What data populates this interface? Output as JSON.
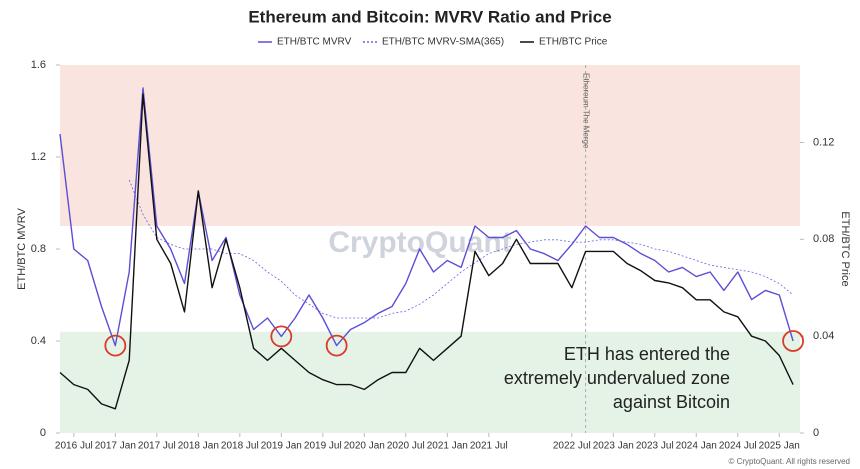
{
  "chart_data": {
    "type": "line",
    "title": "Ethereum and Bitcoin: MVRV Ratio and Price",
    "y_label": "ETH/BTC MVRV",
    "y2_label": "ETH/BTC Price",
    "watermark": "CryptoQuant",
    "copyright": "© CryptoQuant. All rights reserved",
    "annotation": [
      "ETH has entered the",
      "extremely undervalued zone",
      "against Bitcoin"
    ],
    "event": {
      "x": "2022-09",
      "label": "Ethereum The Merge"
    },
    "zones": [
      {
        "from": 0.9,
        "to": 1.6,
        "color": "#f9e4df"
      },
      {
        "from": 0,
        "to": 0.44,
        "color": "#e5f3e6"
      }
    ],
    "highlight_x": [
      "2017-01",
      "2019-01",
      "2019-09",
      "2025-03"
    ],
    "highlight_color": "#d93a2b",
    "xlim": [
      "2016-05",
      "2025-04"
    ],
    "xticks": [
      {
        "value": "2016-07",
        "label": "2016 Jul"
      },
      {
        "value": "2017-01",
        "label": "2017 Jan"
      },
      {
        "value": "2017-07",
        "label": "2017 Jul"
      },
      {
        "value": "2018-01",
        "label": "2018 Jan"
      },
      {
        "value": "2018-07",
        "label": "2018 Jul"
      },
      {
        "value": "2019-01",
        "label": "2019 Jan"
      },
      {
        "value": "2019-07",
        "label": "2019 Jul"
      },
      {
        "value": "2020-01",
        "label": "2020 Jan"
      },
      {
        "value": "2020-07",
        "label": "2020 Jul"
      },
      {
        "value": "2021-01",
        "label": "2021 Jan"
      },
      {
        "value": "2021-07",
        "label": "2021 Jul"
      },
      {
        "value": "2022-07",
        "label": "2022 Jul"
      },
      {
        "value": "2023-01",
        "label": "2023 Jan"
      },
      {
        "value": "2023-07",
        "label": "2023 Jul"
      },
      {
        "value": "2024-01",
        "label": "2024 Jan"
      },
      {
        "value": "2024-07",
        "label": "2024 Jul"
      },
      {
        "value": "2025-01",
        "label": "2025 Jan"
      }
    ],
    "ylim": [
      0,
      1.6
    ],
    "yticks": [
      0,
      0.4,
      0.8,
      1.2,
      1.6
    ],
    "y2lim": [
      0,
      0.152
    ],
    "y2ticks": [
      0,
      0.04,
      0.08,
      0.12
    ],
    "x": [
      "2016-05",
      "2016-07",
      "2016-09",
      "2016-11",
      "2017-01",
      "2017-03",
      "2017-05",
      "2017-07",
      "2017-09",
      "2017-11",
      "2018-01",
      "2018-03",
      "2018-05",
      "2018-07",
      "2018-09",
      "2018-11",
      "2019-01",
      "2019-03",
      "2019-05",
      "2019-07",
      "2019-09",
      "2019-11",
      "2020-01",
      "2020-03",
      "2020-05",
      "2020-07",
      "2020-09",
      "2020-11",
      "2021-01",
      "2021-03",
      "2021-05",
      "2021-07",
      "2021-09",
      "2021-11",
      "2022-01",
      "2022-03",
      "2022-05",
      "2022-07",
      "2022-09",
      "2022-11",
      "2023-01",
      "2023-03",
      "2023-05",
      "2023-07",
      "2023-09",
      "2023-11",
      "2024-01",
      "2024-03",
      "2024-05",
      "2024-07",
      "2024-09",
      "2024-11",
      "2025-01",
      "2025-03"
    ],
    "series": [
      {
        "name": "ETH/BTC MVRV",
        "color": "#5b4fd6",
        "width": 1.4,
        "dash": "none",
        "values": [
          1.3,
          0.8,
          0.75,
          0.55,
          0.38,
          0.7,
          1.5,
          0.9,
          0.8,
          0.65,
          1.05,
          0.75,
          0.85,
          0.6,
          0.45,
          0.5,
          0.42,
          0.5,
          0.6,
          0.5,
          0.38,
          0.45,
          0.48,
          0.52,
          0.55,
          0.65,
          0.8,
          0.7,
          0.75,
          0.72,
          0.9,
          0.85,
          0.85,
          0.88,
          0.8,
          0.78,
          0.75,
          0.82,
          0.9,
          0.85,
          0.85,
          0.82,
          0.78,
          0.75,
          0.7,
          0.72,
          0.68,
          0.7,
          0.62,
          0.7,
          0.58,
          0.62,
          0.6,
          0.4
        ]
      },
      {
        "name": "ETH/BTC MVRV-SMA(365)",
        "color": "#6b63e0",
        "width": 0.8,
        "dash": "2 2",
        "values": [
          null,
          null,
          null,
          null,
          null,
          1.1,
          0.95,
          0.85,
          0.82,
          0.8,
          0.8,
          0.8,
          0.78,
          0.78,
          0.75,
          0.7,
          0.66,
          0.6,
          0.56,
          0.52,
          0.5,
          0.5,
          0.5,
          0.5,
          0.52,
          0.53,
          0.56,
          0.6,
          0.65,
          0.7,
          0.74,
          0.78,
          0.8,
          0.82,
          0.83,
          0.84,
          0.84,
          0.83,
          0.83,
          0.84,
          0.84,
          0.83,
          0.82,
          0.8,
          0.79,
          0.77,
          0.75,
          0.73,
          0.72,
          0.71,
          0.7,
          0.68,
          0.65,
          0.6
        ]
      },
      {
        "name": "ETH/BTC Price",
        "color": "#111111",
        "width": 1.4,
        "dash": "none",
        "axis": "y2",
        "values": [
          0.025,
          0.02,
          0.018,
          0.012,
          0.01,
          0.03,
          0.14,
          0.08,
          0.07,
          0.05,
          0.1,
          0.06,
          0.08,
          0.06,
          0.035,
          0.03,
          0.035,
          0.03,
          0.025,
          0.022,
          0.02,
          0.02,
          0.018,
          0.022,
          0.025,
          0.025,
          0.035,
          0.03,
          0.035,
          0.04,
          0.075,
          0.065,
          0.07,
          0.08,
          0.07,
          0.07,
          0.07,
          0.06,
          0.075,
          0.075,
          0.075,
          0.07,
          0.067,
          0.063,
          0.062,
          0.06,
          0.055,
          0.055,
          0.05,
          0.048,
          0.04,
          0.038,
          0.032,
          0.02
        ]
      }
    ]
  }
}
